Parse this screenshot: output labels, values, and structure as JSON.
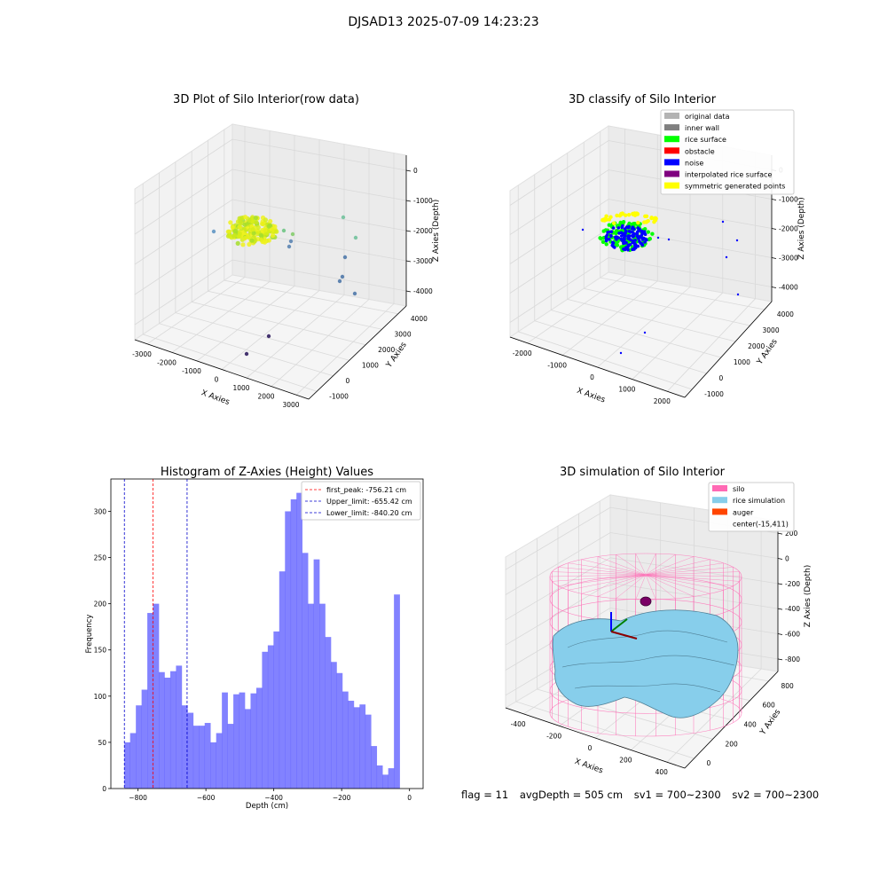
{
  "figure": {
    "suptitle": "DJSAD13 2025-07-09 14:23:23",
    "footer": {
      "flag": "flag = 11",
      "avg_depth": "avgDepth = 505 cm",
      "sv1": "sv1 = 700~2300",
      "sv2": "sv2 = 700~2300"
    }
  },
  "colors": {
    "hist_bar": "#4d4dff",
    "first_peak_line": "#ff0000",
    "limit_line": "#0000cc",
    "silo": "#ff69b4",
    "rice_simulation": "#87ceeb",
    "auger": "#ff4500",
    "original_data": "#b3b3b3",
    "inner_wall": "#808080",
    "rice_surface": "#00ff00",
    "obstacle": "#ff0000",
    "noise": "#0000ff",
    "interpolated_rice_surface": "#800080",
    "symmetric_generated_points": "#ffff00"
  },
  "chart_data": [
    {
      "type": "scatter",
      "title": "3D Plot of Silo Interior(row data)",
      "xlabel": "X Axies",
      "ylabel": "Y Axies",
      "zlabel": "Z Axies (Depth)",
      "x_ticks": [
        "-3000",
        "-2000",
        "-1000",
        "0",
        "1000",
        "2000",
        "3000"
      ],
      "y_ticks": [
        "-1000",
        "0",
        "1000",
        "2000",
        "3000",
        "4000"
      ],
      "z_ticks": [
        "0",
        "-1000",
        "-2000",
        "-3000",
        "-4000"
      ]
    },
    {
      "type": "scatter",
      "title": "3D classify of Silo Interior",
      "xlabel": "X Axies",
      "ylabel": "Y Axies",
      "zlabel": "Z Axies (Depth)",
      "x_ticks": [
        "-2000",
        "-1000",
        "0",
        "1000",
        "2000"
      ],
      "y_ticks": [
        "-1000",
        "0",
        "1000",
        "2000",
        "3000",
        "4000"
      ],
      "z_ticks": [
        "0",
        "-1000",
        "-2000",
        "-3000",
        "-4000"
      ],
      "legend": [
        "original data",
        "inner wall",
        "rice surface",
        "obstacle",
        "noise",
        "interpolated rice surface",
        "symmetric generated points"
      ]
    },
    {
      "type": "bar",
      "title": "Histogram of Z-Axies (Height) Values",
      "xlabel": "Depth (cm)",
      "ylabel": "Frequency",
      "xlim": [
        -880,
        40
      ],
      "ylim": [
        0,
        335
      ],
      "x_ticks": [
        -800,
        -600,
        -400,
        -200,
        0
      ],
      "y_ticks": [
        0,
        50,
        100,
        150,
        200,
        250,
        300
      ],
      "bin_start": -840.2,
      "bin_width": 16.9,
      "values": [
        50,
        60,
        90,
        107,
        190,
        200,
        126,
        120,
        127,
        133,
        90,
        82,
        68,
        68,
        71,
        50,
        60,
        104,
        70,
        102,
        104,
        86,
        103,
        109,
        148,
        155,
        170,
        235,
        300,
        313,
        320,
        255,
        200,
        248,
        200,
        164,
        137,
        125,
        105,
        95,
        88,
        91,
        80,
        46,
        25,
        15,
        22,
        210
      ],
      "vlines": [
        {
          "value": -756.21,
          "label": "first_peak: -756.21 cm",
          "color": "#ff0000"
        },
        {
          "value": -655.42,
          "label": "Upper_limit: -655.42 cm",
          "color": "#0000cc"
        },
        {
          "value": -840.2,
          "label": "Lower_limit: -840.20 cm",
          "color": "#0000cc"
        }
      ]
    },
    {
      "type": "scatter",
      "title": "3D simulation of Silo Interior",
      "xlabel": "X Axies",
      "ylabel": "Y Axies",
      "zlabel": "Z Axies (Depth)",
      "x_ticks": [
        "-400",
        "-200",
        "0",
        "200",
        "400"
      ],
      "y_ticks": [
        "0",
        "200",
        "400",
        "600",
        "800"
      ],
      "z_ticks": [
        "200",
        "0",
        "-200",
        "-400",
        "-600",
        "-800"
      ],
      "legend": [
        "silo",
        "rice simulation",
        "auger",
        "center(-15,411)"
      ]
    }
  ]
}
